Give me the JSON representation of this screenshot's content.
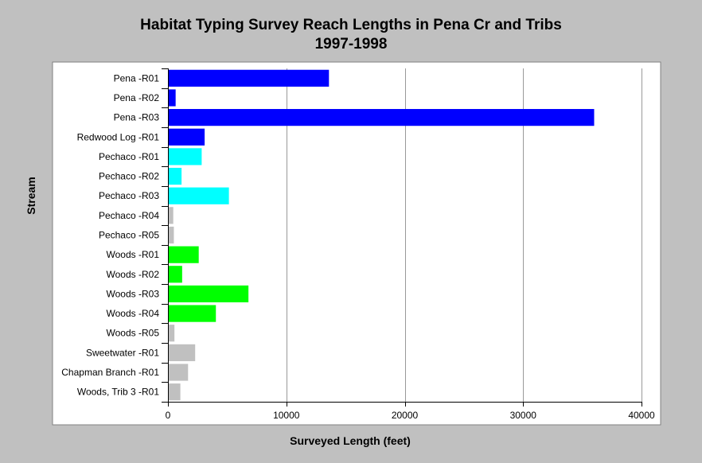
{
  "chart_data": {
    "type": "bar",
    "orientation": "horizontal",
    "title": "Habitat Typing Survey Reach Lengths in Pena Cr and Tribs",
    "subtitle": "1997-1998",
    "xlabel": "Surveyed Length (feet)",
    "ylabel": "Stream",
    "xlim": [
      0,
      40000
    ],
    "xticks": [
      0,
      10000,
      20000,
      30000,
      40000
    ],
    "grid": true,
    "categories": [
      "Pena -R01",
      "Pena -R02",
      "Pena -R03",
      "Redwood Log -R01",
      "Pechaco -R01",
      "Pechaco -R02",
      "Pechaco -R03",
      "Pechaco -R04",
      "Pechaco -R05",
      "Woods -R01",
      "Woods -R02",
      "Woods -R03",
      "Woods -R04",
      "Woods -R05",
      "Sweetwater -R01",
      "Chapman Branch -R01",
      "Woods, Trib 3 -R01"
    ],
    "values": [
      13600,
      650,
      36000,
      3100,
      2850,
      1150,
      5150,
      450,
      500,
      2600,
      1200,
      6800,
      4050,
      550,
      2300,
      1700,
      1050
    ],
    "colors": [
      "#0000ff",
      "#0000ff",
      "#0000ff",
      "#0000ff",
      "#00ffff",
      "#00ffff",
      "#00ffff",
      "#c0c0c0",
      "#c0c0c0",
      "#00ff00",
      "#00ff00",
      "#00ff00",
      "#00ff00",
      "#c0c0c0",
      "#c0c0c0",
      "#c0c0c0",
      "#c0c0c0"
    ],
    "plot_background": "#ffffff",
    "grid_color": "#999999"
  }
}
